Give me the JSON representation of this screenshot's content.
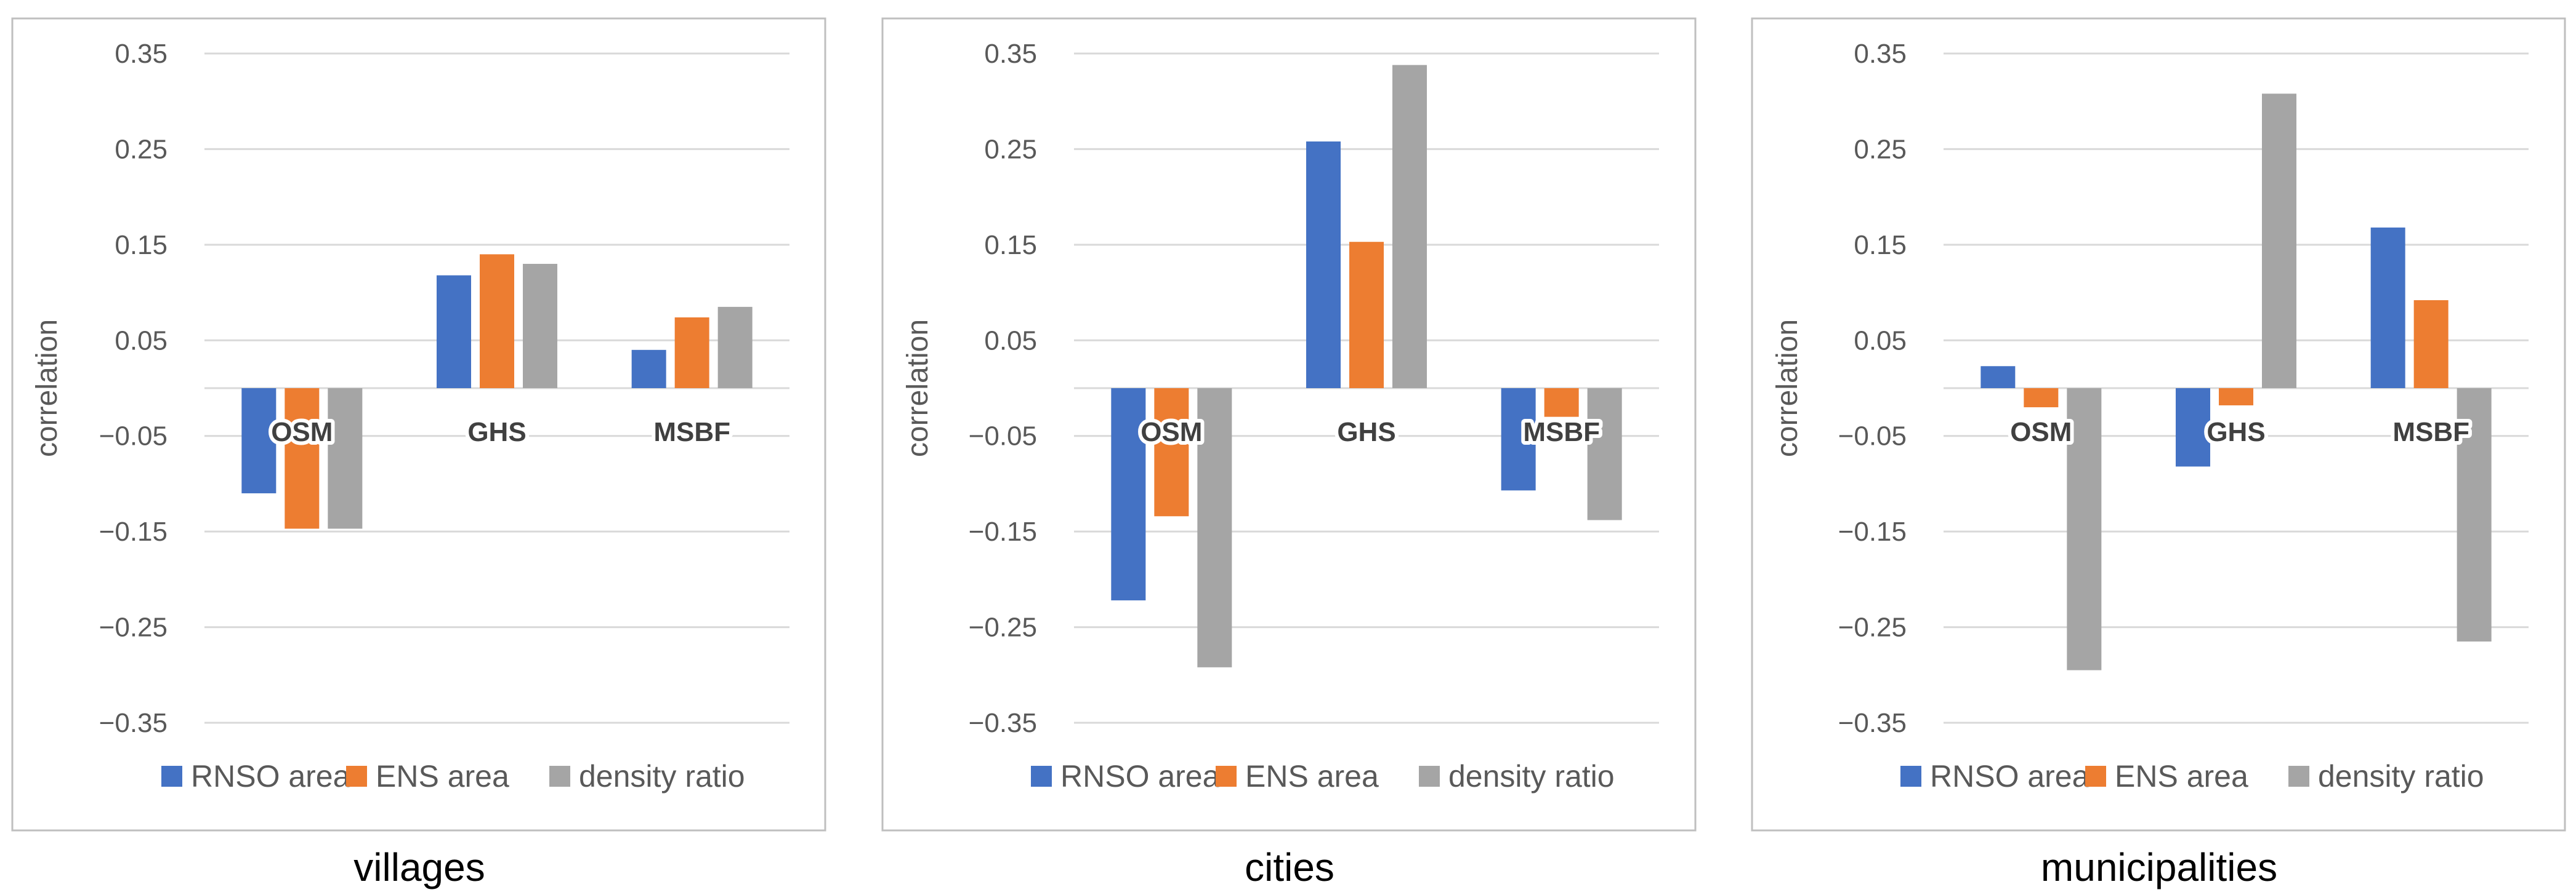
{
  "chart_data": [
    {
      "type": "bar",
      "title": "villages",
      "xlabel": "",
      "ylabel": "correlation",
      "ylim": [
        -0.35,
        0.35
      ],
      "yticks": [
        0.35,
        0.25,
        0.15,
        0.05,
        -0.05,
        -0.15,
        -0.25,
        -0.35
      ],
      "ytick_labels": [
        "0.35",
        "0.25",
        "0.15",
        "0.05",
        "−0.05",
        "−0.15",
        "−0.25",
        "−0.35"
      ],
      "grid": true,
      "legend": "bottom",
      "categories": [
        "OSM",
        "GHS",
        "MSBF"
      ],
      "series": [
        {
          "name": "RNSO area",
          "values": [
            -0.11,
            0.118,
            0.04
          ]
        },
        {
          "name": "ENS area",
          "values": [
            -0.147,
            0.14,
            0.074
          ]
        },
        {
          "name": "density ratio",
          "values": [
            -0.147,
            0.13,
            0.085
          ]
        }
      ]
    },
    {
      "type": "bar",
      "title": "cities",
      "xlabel": "",
      "ylabel": "correlation",
      "ylim": [
        -0.35,
        0.35
      ],
      "yticks": [
        0.35,
        0.25,
        0.15,
        0.05,
        -0.05,
        -0.15,
        -0.25,
        -0.35
      ],
      "ytick_labels": [
        "0.35",
        "0.25",
        "0.15",
        "0.05",
        "−0.05",
        "−0.15",
        "−0.25",
        "−0.35"
      ],
      "grid": true,
      "legend": "bottom",
      "categories": [
        "OSM",
        "GHS",
        "MSBF"
      ],
      "series": [
        {
          "name": "RNSO area",
          "values": [
            -0.222,
            0.258,
            -0.107
          ]
        },
        {
          "name": "ENS area",
          "values": [
            -0.134,
            0.153,
            -0.03
          ]
        },
        {
          "name": "density ratio",
          "values": [
            -0.292,
            0.338,
            -0.138
          ]
        }
      ]
    },
    {
      "type": "bar",
      "title": "municipalities",
      "xlabel": "",
      "ylabel": "correlation",
      "ylim": [
        -0.35,
        0.35
      ],
      "yticks": [
        0.35,
        0.25,
        0.15,
        0.05,
        -0.05,
        -0.15,
        -0.25,
        -0.35
      ],
      "ytick_labels": [
        "0.35",
        "0.25",
        "0.15",
        "0.05",
        "−0.05",
        "−0.15",
        "−0.25",
        "−0.35"
      ],
      "grid": true,
      "legend": "bottom",
      "categories": [
        "OSM",
        "GHS",
        "MSBF"
      ],
      "series": [
        {
          "name": "RNSO area",
          "values": [
            0.023,
            -0.082,
            0.168
          ]
        },
        {
          "name": "ENS area",
          "values": [
            -0.02,
            -0.018,
            0.092
          ]
        },
        {
          "name": "density ratio",
          "values": [
            -0.295,
            0.308,
            -0.265
          ]
        }
      ]
    }
  ],
  "colors": {
    "RNSO area": "#4472c4",
    "ENS area": "#ed7d31",
    "density ratio": "#a5a5a5"
  }
}
